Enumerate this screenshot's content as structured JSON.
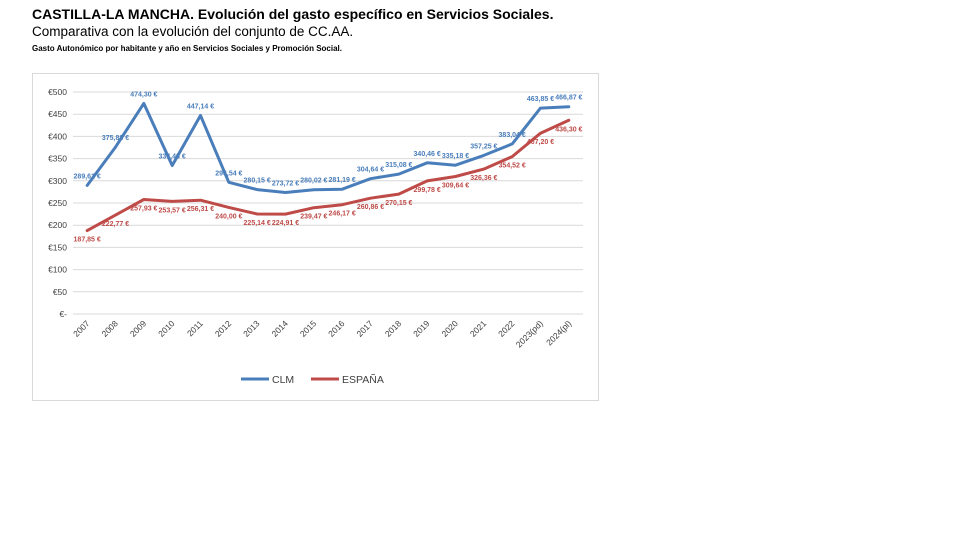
{
  "header": {
    "title": "CASTILLA-LA MANCHA. Evolución del gasto específico en Servicios Sociales.",
    "subtitle": "Comparativa con la evolución del conjunto de CC.AA.",
    "note": "Gasto Autonómico por habitante y año en Servicios Sociales y Promoción Social."
  },
  "chart_data": {
    "type": "line",
    "categories": [
      "2007",
      "2008",
      "2009",
      "2010",
      "2011",
      "2012",
      "2013",
      "2014",
      "2015",
      "2016",
      "2017",
      "2018",
      "2019",
      "2020",
      "2021",
      "2022",
      "2023(pd)",
      "2024(pl)"
    ],
    "series": [
      {
        "name": "CLM",
        "color": "#4a7ebb",
        "values": [
          289.61,
          375.88,
          474.3,
          334.48,
          447.14,
          296.54,
          280.15,
          273.72,
          280.02,
          281.19,
          304.64,
          315.08,
          340.46,
          335.18,
          357.25,
          383.04,
          463.85,
          466.87
        ],
        "labels": [
          "289,61 €",
          "375,88 €",
          "474,30 €",
          "334,48 €",
          "447,14 €",
          "296,54 €",
          "280,15 €",
          "273,72 €",
          "280,02 €",
          "281,19 €",
          "304,64 €",
          "315,08 €",
          "340,46 €",
          "335,18 €",
          "357,25 €",
          "383,04 €",
          "463,85 €",
          "466,87 €"
        ]
      },
      {
        "name": "ESPAÑA",
        "color": "#be4b48",
        "values": [
          187.85,
          222.77,
          257.93,
          253.57,
          256.31,
          240.0,
          225.14,
          224.91,
          239.47,
          246.17,
          260.86,
          270.15,
          299.78,
          309.64,
          326.36,
          354.52,
          407.2,
          436.3
        ],
        "labels": [
          "187,85 €",
          "222,77 €",
          "257,93 €",
          "253,57 €",
          "256,31 €",
          "240,00 €",
          "225,14 €",
          "224,91 €",
          "239,47 €",
          "246,17 €",
          "260,86 €",
          "270,15 €",
          "299,78 €",
          "309,64 €",
          "326,36 €",
          "354,52 €",
          "407,20 €",
          "436,30 €"
        ]
      }
    ],
    "ylim": [
      0,
      500
    ],
    "yticks": [
      0,
      50,
      100,
      150,
      200,
      250,
      300,
      350,
      400,
      450,
      500
    ],
    "ytick_labels": [
      "€-",
      "€50",
      "€100",
      "€150",
      "€200",
      "€250",
      "€300",
      "€350",
      "€400",
      "€450",
      "€500"
    ],
    "grid": true,
    "legend_position": "bottom"
  }
}
